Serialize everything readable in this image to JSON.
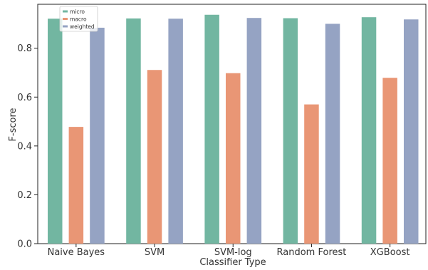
{
  "chart_data": {
    "type": "bar",
    "title": "",
    "xlabel": "Classifier Type",
    "ylabel": "F-score",
    "ylim": [
      0,
      0.98
    ],
    "yticks": [
      0.0,
      0.2,
      0.4,
      0.6,
      0.8
    ],
    "ytick_labels": [
      "0.0",
      "0.2",
      "0.4",
      "0.6",
      "0.8"
    ],
    "categories": [
      "Naive Bayes",
      "SVM",
      "SVM-log",
      "Random Forest",
      "XGBoost"
    ],
    "series": [
      {
        "name": "micro",
        "color": "#72b6a1",
        "values": [
          0.921,
          0.922,
          0.937,
          0.923,
          0.927
        ]
      },
      {
        "name": "macro",
        "color": "#e99675",
        "values": [
          0.478,
          0.711,
          0.698,
          0.57,
          0.679
        ]
      },
      {
        "name": "weighted",
        "color": "#95a3c3",
        "values": [
          0.884,
          0.921,
          0.924,
          0.9,
          0.918
        ]
      }
    ],
    "grid": false,
    "legend_position": "top-left"
  }
}
